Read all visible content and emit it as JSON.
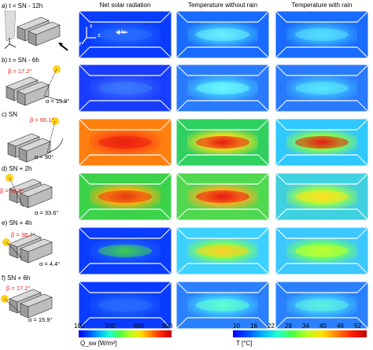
{
  "columns": [
    "Net solar radiation",
    "Temperature without rain",
    "Temperature with rain"
  ],
  "rows": [
    {
      "label": "a) t = SN - 12h",
      "beta": "",
      "alpha": ""
    },
    {
      "label": "b) t = SN - 6h",
      "beta": "β = 17.2°",
      "alpha": "α = 15.9°"
    },
    {
      "label": "c) SN",
      "beta": "β = 66.1°",
      "alpha": "α = 90°"
    },
    {
      "label": "d) SN + 2h",
      "beta": "β = 55.8°",
      "alpha": "α = 33.6°"
    },
    {
      "label": "e) SN + 4h",
      "beta": "β = 38.7°",
      "alpha": "α = 4.4°"
    },
    {
      "label": "f) SN + 6h",
      "beta": "β = 17.2°",
      "alpha": "α = 15.9°"
    }
  ],
  "axes_labels": {
    "x": "x",
    "y": "y",
    "z": "z",
    "north": "N"
  },
  "colorbar_sw": {
    "ticks": [
      "100",
      "300",
      "600",
      "900"
    ],
    "label": "Q_sw [W/m²]"
  },
  "colorbar_t": {
    "ticks": [
      "10",
      "16",
      "22",
      "28",
      "34",
      "40",
      "46",
      "52"
    ],
    "label": "T [°C]"
  },
  "colors": {
    "low": "#1a1aff",
    "mid": "#20e0ff",
    "green": "#3cd24a",
    "yellow": "#f2e820",
    "red": "#e81a10",
    "beta_text": "#e32020",
    "sun": "#ffd21a"
  }
}
